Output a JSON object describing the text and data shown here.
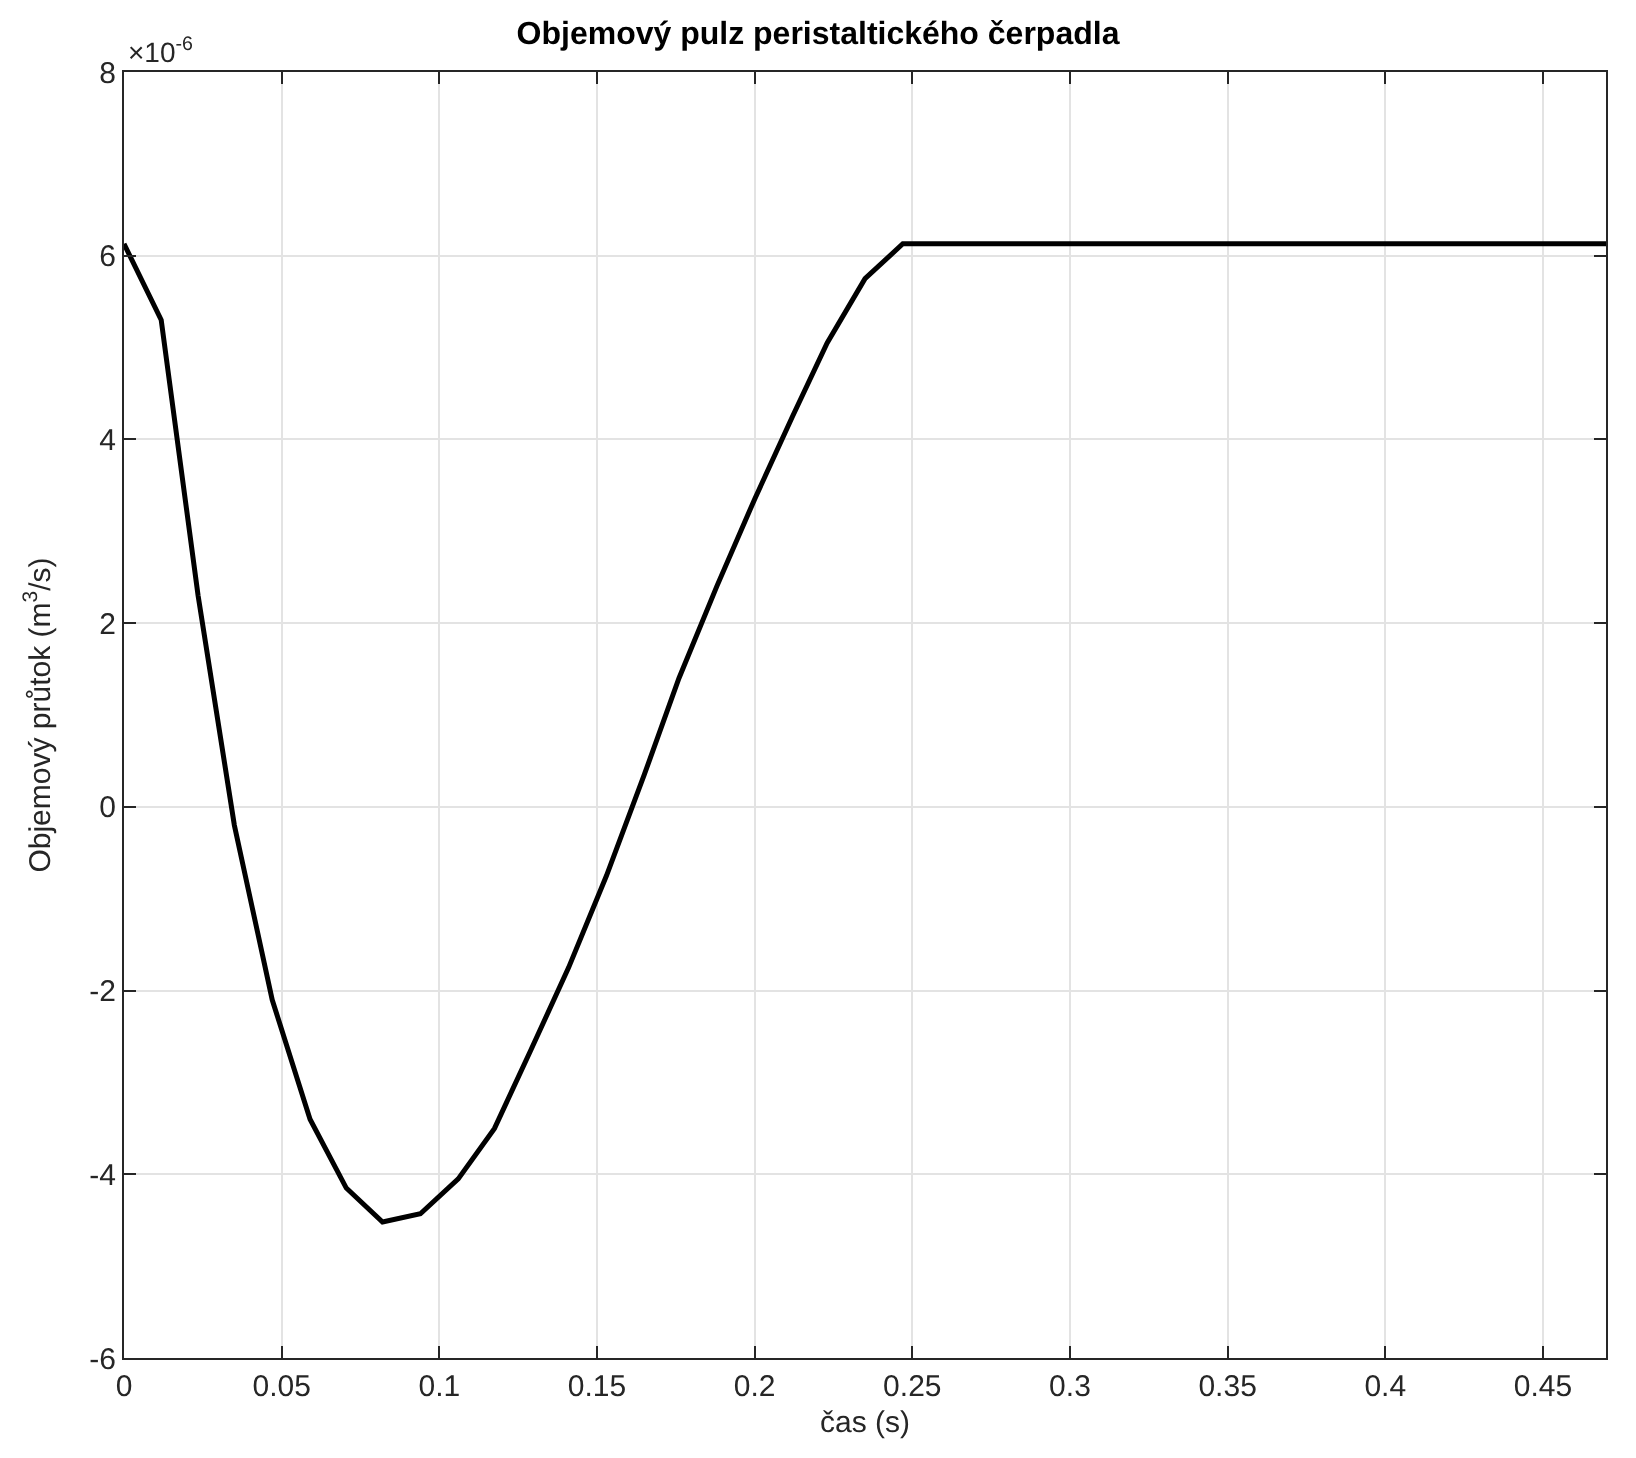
{
  "chart_data": {
    "type": "line",
    "title": "Objemový pulz peristaltického čerpadla",
    "xlabel": "čas (s)",
    "ylabel": "Objemový průtok (m$^{3}$/s)",
    "annotations": [
      "×10$^{-6}$"
    ],
    "x": [
      0,
      0.0118,
      0.0235,
      0.035,
      0.047,
      0.059,
      0.0705,
      0.082,
      0.094,
      0.106,
      0.1175,
      0.129,
      0.141,
      0.153,
      0.165,
      0.176,
      0.188,
      0.2,
      0.212,
      0.223,
      0.235,
      0.247,
      0.47
    ],
    "series": [
      {
        "color": "#000000",
        "values": [
          6.13,
          5.3,
          2.3,
          -0.2,
          -2.1,
          -3.4,
          -4.15,
          -4.52,
          -4.43,
          -4.05,
          -3.5,
          -2.65,
          -1.75,
          -0.75,
          0.35,
          1.4,
          2.4,
          3.35,
          4.25,
          5.05,
          5.75,
          6.13,
          6.13
        ]
      }
    ],
    "xlim": [
      0,
      0.47
    ],
    "xticks": [
      0,
      0.05,
      0.1,
      0.15,
      0.2,
      0.25,
      0.3,
      0.35,
      0.4,
      0.45
    ],
    "ylim": [
      -6,
      8
    ],
    "yticks": [
      -6,
      -4,
      -2,
      0,
      2,
      4,
      6,
      8
    ],
    "grid": true,
    "marker": "none",
    "line_style": "solid"
  }
}
